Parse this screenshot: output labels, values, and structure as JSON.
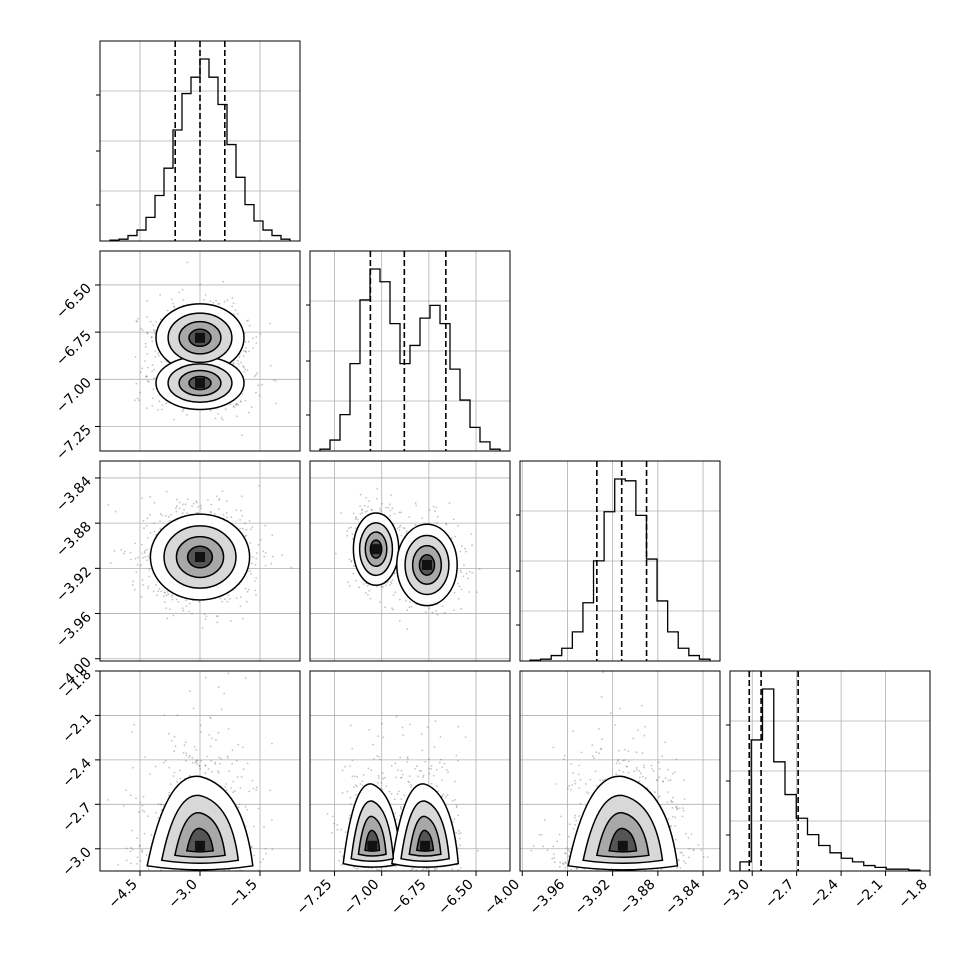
{
  "chart_data": {
    "type": "corner",
    "parameters": [
      {
        "id": "p1",
        "range": [
          -5.5,
          -0.5
        ],
        "ticks": [
          {
            "v": -4.5,
            "label": "−4.5"
          },
          {
            "v": -3.0,
            "label": "−3.0"
          },
          {
            "v": -1.5,
            "label": "−1.5"
          }
        ],
        "quantiles": [
          -3.62,
          -3.0,
          -2.38
        ],
        "hist_bins": [
          0.005,
          0.01,
          0.03,
          0.06,
          0.13,
          0.25,
          0.4,
          0.61,
          0.81,
          0.9,
          1.0,
          0.9,
          0.75,
          0.53,
          0.35,
          0.2,
          0.11,
          0.06,
          0.03,
          0.01
        ]
      },
      {
        "id": "p2",
        "range": [
          -7.38,
          -6.32
        ],
        "ticks": [
          {
            "v": -7.25,
            "label": "−7.25"
          },
          {
            "v": -7.0,
            "label": "−7.00"
          },
          {
            "v": -6.75,
            "label": "−6.75"
          },
          {
            "v": -6.5,
            "label": "−6.50"
          }
        ],
        "quantiles": [
          -7.06,
          -6.88,
          -6.66
        ],
        "hist_bins": [
          0.01,
          0.06,
          0.2,
          0.48,
          0.83,
          1.0,
          0.93,
          0.7,
          0.48,
          0.58,
          0.73,
          0.8,
          0.7,
          0.45,
          0.28,
          0.13,
          0.05,
          0.01
        ]
      },
      {
        "id": "p3",
        "range": [
          -4.002,
          -3.825
        ],
        "ticks": [
          {
            "v": -4.0,
            "label": "−4.00"
          },
          {
            "v": -3.96,
            "label": "−3.96"
          },
          {
            "v": -3.92,
            "label": "−3.92"
          },
          {
            "v": -3.88,
            "label": "−3.88"
          },
          {
            "v": -3.84,
            "label": "−3.84"
          }
        ],
        "quantiles": [
          -3.934,
          -3.912,
          -3.89
        ],
        "hist_bins": [
          0.005,
          0.01,
          0.03,
          0.07,
          0.16,
          0.32,
          0.55,
          0.82,
          1.0,
          0.99,
          0.8,
          0.56,
          0.33,
          0.16,
          0.07,
          0.03,
          0.01
        ]
      },
      {
        "id": "p4",
        "range": [
          -3.15,
          -1.8
        ],
        "ticks": [
          {
            "v": -3.0,
            "label": "−3.0"
          },
          {
            "v": -2.7,
            "label": "−2.7"
          },
          {
            "v": -2.4,
            "label": "−2.4"
          },
          {
            "v": -2.1,
            "label": "−2.1"
          },
          {
            "v": -1.8,
            "label": "−1.8"
          }
        ],
        "quantiles": [
          -3.02,
          -2.94,
          -2.69
        ],
        "hist_bins": [
          0.05,
          0.72,
          1.0,
          0.6,
          0.42,
          0.29,
          0.2,
          0.14,
          0.1,
          0.07,
          0.05,
          0.03,
          0.02,
          0.01,
          0.01,
          0.005
        ]
      }
    ],
    "pairs": [
      {
        "row": 1,
        "col": 0,
        "shape": "bimodal",
        "modes": [
          [
            -3.0,
            -6.78
          ],
          [
            -3.0,
            -7.02
          ]
        ],
        "spread": [
          [
            0.55,
            0.09
          ],
          [
            0.55,
            0.07
          ]
        ]
      },
      {
        "row": 2,
        "col": 0,
        "shape": "unimodal",
        "modes": [
          [
            -3.0,
            -3.91
          ]
        ],
        "spread": [
          [
            0.62,
            0.019
          ]
        ]
      },
      {
        "row": 2,
        "col": 1,
        "shape": "bimodal",
        "modes": [
          [
            -7.03,
            -3.903
          ],
          [
            -6.76,
            -3.917
          ]
        ],
        "spread": [
          [
            0.06,
            0.016
          ],
          [
            0.08,
            0.018
          ]
        ]
      },
      {
        "row": 3,
        "col": 0,
        "shape": "skewed",
        "modes": [
          [
            -3.0,
            -2.98
          ]
        ],
        "spread": [
          [
            0.6,
            0.09
          ]
        ]
      },
      {
        "row": 3,
        "col": 1,
        "shape": "bimodal-skewed",
        "modes": [
          [
            -7.05,
            -2.98
          ],
          [
            -6.77,
            -2.98
          ]
        ],
        "spread": [
          [
            0.07,
            0.08
          ],
          [
            0.08,
            0.08
          ]
        ]
      },
      {
        "row": 3,
        "col": 2,
        "shape": "skewed",
        "modes": [
          [
            -3.911,
            -2.98
          ]
        ],
        "spread": [
          [
            0.022,
            0.09
          ]
        ]
      }
    ],
    "grid": true
  }
}
